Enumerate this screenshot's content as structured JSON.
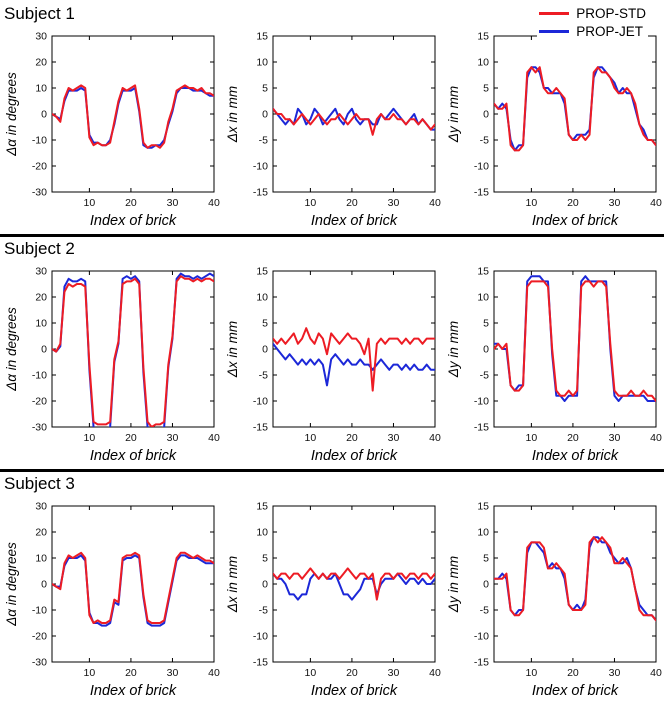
{
  "legend": {
    "items": [
      {
        "name": "PROP-STD",
        "label": "PROP-STD",
        "color": "#ed1c24"
      },
      {
        "name": "PROP-JET",
        "label": "PROP-JET",
        "color": "#1c28d8"
      }
    ]
  },
  "subjects": [
    {
      "title": "Subject 1"
    },
    {
      "title": "Subject 2"
    },
    {
      "title": "Subject 3"
    }
  ],
  "chart_data": [
    {
      "type": "line",
      "subject": "Subject 1",
      "title": "",
      "xlabel": "Index of brick",
      "ylabel": "Δα in degrees",
      "xlim": [
        1,
        40
      ],
      "xticks": [
        10,
        20,
        30,
        40
      ],
      "ylim": [
        -30,
        30
      ],
      "yticks": [
        -30,
        -20,
        -10,
        0,
        10,
        20,
        30
      ],
      "series": [
        {
          "name": "PROP-STD",
          "values": [
            0,
            -1,
            -3,
            6,
            10,
            9,
            10,
            11,
            10,
            -9,
            -12,
            -11,
            -12,
            -12,
            -11,
            -3,
            5,
            10,
            9,
            10,
            11,
            2,
            -11,
            -13,
            -12,
            -12,
            -13,
            -11,
            -3,
            2,
            9,
            10,
            11,
            10,
            10,
            9,
            10,
            8,
            8,
            7
          ]
        },
        {
          "name": "PROP-JET",
          "values": [
            0,
            -1,
            -2,
            5,
            9,
            9,
            9,
            10,
            9,
            -8,
            -11,
            -11,
            -12,
            -12,
            -10,
            -4,
            4,
            9,
            9,
            9,
            10,
            1,
            -12,
            -13,
            -13,
            -12,
            -12,
            -10,
            -4,
            1,
            8,
            10,
            10,
            10,
            9,
            9,
            9,
            8,
            7,
            7
          ]
        }
      ]
    },
    {
      "type": "line",
      "subject": "Subject 1",
      "title": "",
      "xlabel": "Index of brick",
      "ylabel": "Δx in mm",
      "xlim": [
        1,
        40
      ],
      "xticks": [
        10,
        20,
        30,
        40
      ],
      "ylim": [
        -15,
        15
      ],
      "yticks": [
        -15,
        -10,
        -5,
        0,
        5,
        10,
        15
      ],
      "series": [
        {
          "name": "PROP-STD",
          "values": [
            1,
            0,
            0,
            -1,
            -1,
            -2,
            -1,
            0,
            -1,
            -2,
            -1,
            0,
            -1,
            -2,
            -1,
            -1,
            0,
            -1,
            -2,
            -1,
            0,
            -1,
            -1,
            -1,
            -4,
            -1,
            0,
            -1,
            -1,
            0,
            -1,
            -1,
            -2,
            -1,
            -1,
            -2,
            -1,
            -2,
            -3,
            -2
          ]
        },
        {
          "name": "PROP-JET",
          "values": [
            1,
            0,
            -1,
            -2,
            -1,
            -2,
            1,
            0,
            -2,
            -1,
            1,
            0,
            -2,
            -1,
            0,
            1,
            -1,
            -2,
            0,
            1,
            -1,
            -2,
            -1,
            -1,
            -2,
            -2,
            0,
            -1,
            0,
            1,
            0,
            -1,
            -2,
            -1,
            0,
            -2,
            -1,
            -2,
            -3,
            -3
          ]
        }
      ]
    },
    {
      "type": "line",
      "subject": "Subject 1",
      "title": "",
      "xlabel": "Index of brick",
      "ylabel": "Δy in mm",
      "xlim": [
        1,
        40
      ],
      "xticks": [
        10,
        20,
        30,
        40
      ],
      "ylim": [
        -15,
        15
      ],
      "yticks": [
        -15,
        -10,
        -5,
        0,
        5,
        10,
        15
      ],
      "series": [
        {
          "name": "PROP-STD",
          "values": [
            2,
            1,
            1,
            2,
            -6,
            -7,
            -7,
            -6,
            8,
            9,
            8,
            9,
            5,
            4,
            4,
            5,
            4,
            3,
            -4,
            -5,
            -5,
            -4,
            -5,
            -4,
            8,
            9,
            8,
            8,
            7,
            5,
            4,
            4,
            5,
            4,
            2,
            -2,
            -4,
            -5,
            -5,
            -6
          ]
        },
        {
          "name": "PROP-JET",
          "values": [
            2,
            1,
            2,
            1,
            -5,
            -7,
            -6,
            -6,
            7,
            9,
            9,
            8,
            5,
            5,
            4,
            4,
            4,
            2,
            -4,
            -5,
            -4,
            -4,
            -4,
            -3,
            7,
            9,
            9,
            8,
            7,
            6,
            4,
            5,
            4,
            4,
            1,
            -2,
            -3,
            -5,
            -5,
            -6
          ]
        }
      ]
    },
    {
      "type": "line",
      "subject": "Subject 2",
      "title": "",
      "xlabel": "Index of brick",
      "ylabel": "Δα in degrees",
      "xlim": [
        1,
        40
      ],
      "xticks": [
        10,
        20,
        30,
        40
      ],
      "ylim": [
        -30,
        30
      ],
      "yticks": [
        -30,
        -20,
        -10,
        0,
        10,
        20,
        30
      ],
      "series": [
        {
          "name": "PROP-STD",
          "values": [
            0,
            -1,
            2,
            22,
            25,
            24,
            25,
            25,
            24,
            -6,
            -28,
            -29,
            -29,
            -29,
            -28,
            -4,
            3,
            25,
            26,
            26,
            27,
            25,
            -7,
            -28,
            -30,
            -29,
            -29,
            -28,
            -6,
            5,
            26,
            28,
            27,
            27,
            26,
            27,
            26,
            27,
            27,
            26
          ]
        },
        {
          "name": "PROP-JET",
          "values": [
            0,
            -1,
            1,
            24,
            27,
            26,
            26,
            27,
            26,
            -8,
            -30,
            -32,
            -31,
            -31,
            -30,
            -5,
            2,
            27,
            28,
            27,
            28,
            26,
            -9,
            -30,
            -32,
            -31,
            -31,
            -30,
            -7,
            4,
            27,
            29,
            28,
            28,
            27,
            28,
            27,
            28,
            29,
            28
          ]
        }
      ]
    },
    {
      "type": "line",
      "subject": "Subject 2",
      "title": "",
      "xlabel": "Index of brick",
      "ylabel": "Δx in mm",
      "xlim": [
        1,
        40
      ],
      "xticks": [
        10,
        20,
        30,
        40
      ],
      "ylim": [
        -15,
        15
      ],
      "yticks": [
        -15,
        -10,
        -5,
        0,
        5,
        10,
        15
      ],
      "series": [
        {
          "name": "PROP-STD",
          "values": [
            2,
            1,
            2,
            1,
            2,
            3,
            1,
            2,
            4,
            2,
            1,
            3,
            2,
            -1,
            3,
            2,
            1,
            2,
            3,
            2,
            2,
            1,
            -1,
            2,
            -8,
            1,
            2,
            1,
            2,
            2,
            2,
            1,
            2,
            1,
            2,
            2,
            1,
            2,
            2,
            2
          ]
        },
        {
          "name": "PROP-JET",
          "values": [
            1,
            0,
            -1,
            -2,
            -1,
            -2,
            -3,
            -2,
            -3,
            -2,
            -3,
            -2,
            -3,
            -7,
            -2,
            -1,
            -2,
            -3,
            -2,
            -3,
            -3,
            -2,
            -3,
            -3,
            -4,
            -3,
            -2,
            -3,
            -4,
            -3,
            -3,
            -4,
            -3,
            -4,
            -3,
            -4,
            -4,
            -3,
            -4,
            -4
          ]
        }
      ]
    },
    {
      "type": "line",
      "subject": "Subject 2",
      "title": "",
      "xlabel": "Index of brick",
      "ylabel": "Δy in mm",
      "xlim": [
        1,
        40
      ],
      "xticks": [
        10,
        20,
        30,
        40
      ],
      "ylim": [
        -15,
        15
      ],
      "yticks": [
        -15,
        -10,
        -5,
        0,
        5,
        10,
        15
      ],
      "series": [
        {
          "name": "PROP-STD",
          "values": [
            0,
            1,
            0,
            1,
            -7,
            -8,
            -8,
            -7,
            12,
            13,
            13,
            13,
            13,
            12,
            0,
            -8,
            -9,
            -9,
            -8,
            -9,
            -8,
            12,
            13,
            13,
            12,
            13,
            13,
            12,
            1,
            -8,
            -9,
            -9,
            -9,
            -8,
            -9,
            -9,
            -8,
            -9,
            -9,
            -10
          ]
        },
        {
          "name": "PROP-JET",
          "values": [
            1,
            1,
            0,
            0,
            -7,
            -8,
            -7,
            -7,
            13,
            14,
            14,
            14,
            13,
            13,
            -1,
            -9,
            -9,
            -10,
            -9,
            -9,
            -9,
            13,
            14,
            13,
            13,
            13,
            13,
            13,
            0,
            -9,
            -10,
            -9,
            -9,
            -9,
            -9,
            -9,
            -9,
            -10,
            -10,
            -10
          ]
        }
      ]
    },
    {
      "type": "line",
      "subject": "Subject 3",
      "title": "",
      "xlabel": "Index of brick",
      "ylabel": "Δα in degrees",
      "xlim": [
        1,
        40
      ],
      "xticks": [
        10,
        20,
        30,
        40
      ],
      "ylim": [
        -30,
        30
      ],
      "yticks": [
        -30,
        -20,
        -10,
        0,
        10,
        20,
        30
      ],
      "series": [
        {
          "name": "PROP-STD",
          "values": [
            0,
            -1,
            -2,
            8,
            11,
            10,
            11,
            12,
            10,
            -12,
            -15,
            -14,
            -15,
            -15,
            -14,
            -6,
            -7,
            10,
            11,
            11,
            12,
            11,
            -4,
            -14,
            -15,
            -15,
            -15,
            -14,
            -6,
            2,
            10,
            12,
            12,
            11,
            10,
            11,
            10,
            9,
            9,
            8
          ]
        },
        {
          "name": "PROP-JET",
          "values": [
            0,
            -1,
            -1,
            7,
            10,
            10,
            10,
            11,
            9,
            -11,
            -15,
            -15,
            -16,
            -16,
            -15,
            -7,
            -8,
            9,
            10,
            10,
            11,
            10,
            -5,
            -15,
            -16,
            -16,
            -16,
            -15,
            -7,
            1,
            9,
            11,
            11,
            10,
            10,
            10,
            9,
            8,
            8,
            8
          ]
        }
      ]
    },
    {
      "type": "line",
      "subject": "Subject 3",
      "title": "",
      "xlabel": "Index of brick",
      "ylabel": "Δx in mm",
      "xlim": [
        1,
        40
      ],
      "xticks": [
        10,
        20,
        30,
        40
      ],
      "ylim": [
        -15,
        15
      ],
      "yticks": [
        -15,
        -10,
        -5,
        0,
        5,
        10,
        15
      ],
      "series": [
        {
          "name": "PROP-STD",
          "values": [
            2,
            1,
            2,
            2,
            1,
            2,
            2,
            1,
            2,
            3,
            2,
            1,
            2,
            1,
            2,
            2,
            1,
            2,
            3,
            2,
            1,
            2,
            2,
            1,
            2,
            -3,
            1,
            2,
            2,
            1,
            2,
            2,
            1,
            2,
            2,
            1,
            2,
            2,
            1,
            2
          ]
        },
        {
          "name": "PROP-JET",
          "values": [
            2,
            1,
            1,
            0,
            -2,
            -2,
            -3,
            -2,
            -2,
            1,
            2,
            1,
            2,
            1,
            1,
            2,
            0,
            -2,
            -2,
            -3,
            -2,
            -1,
            1,
            1,
            1,
            -2,
            0,
            1,
            1,
            1,
            2,
            1,
            0,
            1,
            1,
            0,
            1,
            0,
            0,
            1
          ]
        }
      ]
    },
    {
      "type": "line",
      "subject": "Subject 3",
      "title": "",
      "xlabel": "Index of brick",
      "ylabel": "Δy in mm",
      "xlim": [
        1,
        40
      ],
      "xticks": [
        10,
        20,
        30,
        40
      ],
      "ylim": [
        -15,
        15
      ],
      "yticks": [
        -15,
        -10,
        -5,
        0,
        5,
        10,
        15
      ],
      "series": [
        {
          "name": "PROP-STD",
          "values": [
            1,
            1,
            1,
            2,
            -5,
            -6,
            -6,
            -5,
            7,
            8,
            8,
            8,
            7,
            3,
            3,
            4,
            3,
            2,
            -4,
            -5,
            -5,
            -5,
            -4,
            8,
            9,
            8,
            9,
            8,
            7,
            4,
            4,
            5,
            4,
            3,
            -1,
            -5,
            -6,
            -6,
            -6,
            -7
          ]
        },
        {
          "name": "PROP-JET",
          "values": [
            1,
            1,
            2,
            1,
            -5,
            -6,
            -5,
            -5,
            6,
            8,
            8,
            7,
            6,
            3,
            4,
            3,
            3,
            1,
            -4,
            -5,
            -4,
            -5,
            -3,
            7,
            9,
            9,
            8,
            8,
            6,
            5,
            4,
            4,
            5,
            3,
            -1,
            -4,
            -5,
            -6,
            -6,
            -7
          ]
        }
      ]
    }
  ]
}
